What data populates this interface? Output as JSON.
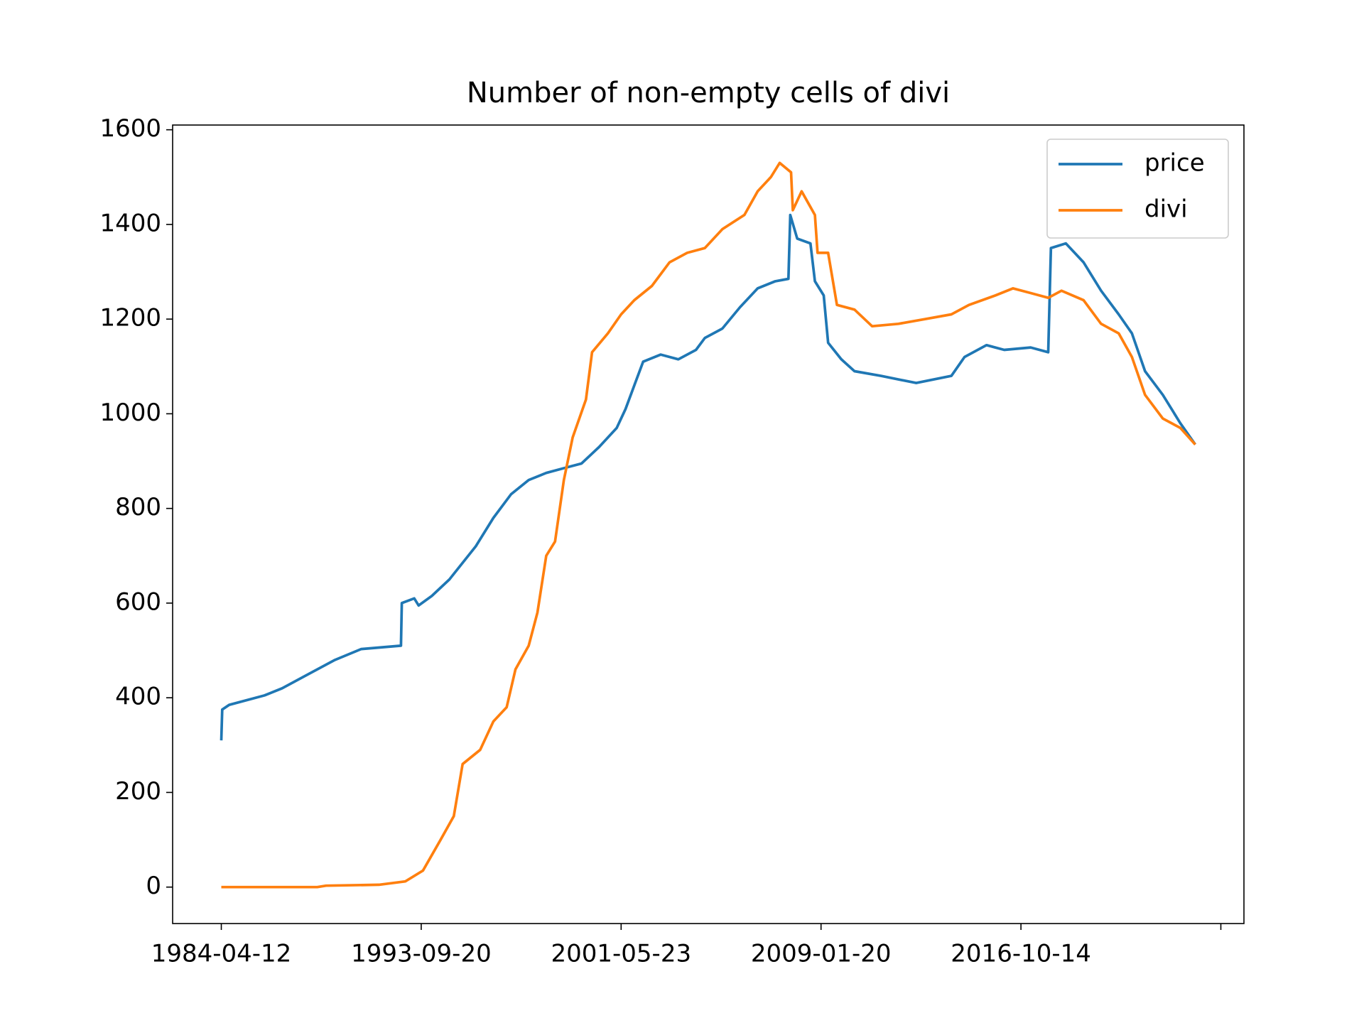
{
  "chart_data": {
    "type": "line",
    "title": "Number of non-empty cells of divi",
    "xlim": [
      -487,
      10231
    ],
    "ylim": [
      -77,
      1610
    ],
    "xticks": [
      {
        "value": 0,
        "label": "1984-04-12"
      },
      {
        "value": 2000,
        "label": "1993-09-20"
      },
      {
        "value": 4000,
        "label": "2001-05-23"
      },
      {
        "value": 6000,
        "label": "2009-01-20"
      },
      {
        "value": 8000,
        "label": "2016-10-14"
      },
      {
        "value": 10000,
        "label": null
      }
    ],
    "yticks": [
      0,
      200,
      400,
      600,
      800,
      1000,
      1200,
      1400,
      1600
    ],
    "legend": "upper right",
    "grid": false,
    "series": [
      {
        "name": "price",
        "color": "#1f77b4",
        "x": [
          0,
          9,
          79,
          432,
          608,
          872,
          1137,
          1401,
          1797,
          1806,
          1930,
          1974,
          2106,
          2282,
          2546,
          2722,
          2899,
          3075,
          3251,
          3427,
          3604,
          3780,
          3956,
          4044,
          4132,
          4220,
          4396,
          4573,
          4749,
          4837,
          5013,
          5189,
          5366,
          5542,
          5674,
          5692,
          5762,
          5894,
          5939,
          6027,
          6071,
          6203,
          6335,
          6599,
          6952,
          7304,
          7436,
          7656,
          7833,
          8097,
          8273,
          8300,
          8449,
          8626,
          8802,
          8978,
          9110,
          9242,
          9419,
          9595,
          9744
        ],
        "values": [
          310,
          375,
          385,
          405,
          420,
          450,
          480,
          503,
          510,
          600,
          610,
          595,
          615,
          650,
          720,
          780,
          830,
          860,
          875,
          885,
          895,
          930,
          970,
          1010,
          1060,
          1110,
          1125,
          1115,
          1135,
          1160,
          1180,
          1225,
          1265,
          1280,
          1285,
          1420,
          1370,
          1360,
          1280,
          1250,
          1150,
          1115,
          1090,
          1080,
          1065,
          1080,
          1120,
          1145,
          1135,
          1140,
          1130,
          1350,
          1360,
          1320,
          1260,
          1210,
          1170,
          1090,
          1040,
          980,
          935
        ]
      },
      {
        "name": "divi",
        "color": "#ff7f0e",
        "x": [
          0,
          432,
          960,
          1048,
          1577,
          1841,
          2018,
          2194,
          2326,
          2414,
          2590,
          2722,
          2855,
          2943,
          3075,
          3163,
          3251,
          3339,
          3427,
          3515,
          3648,
          3709,
          3868,
          4000,
          4132,
          4308,
          4485,
          4661,
          4837,
          5013,
          5233,
          5366,
          5498,
          5586,
          5700,
          5718,
          5806,
          5939,
          5965,
          6071,
          6159,
          6335,
          6511,
          6775,
          7040,
          7304,
          7480,
          7744,
          7921,
          8097,
          8273,
          8405,
          8626,
          8802,
          8978,
          9110,
          9242,
          9419,
          9595,
          9744
        ],
        "values": [
          0,
          0,
          0,
          3,
          5,
          12,
          35,
          100,
          150,
          260,
          290,
          350,
          380,
          460,
          510,
          580,
          700,
          730,
          860,
          950,
          1030,
          1130,
          1170,
          1210,
          1240,
          1270,
          1320,
          1340,
          1350,
          1390,
          1420,
          1470,
          1500,
          1530,
          1510,
          1430,
          1470,
          1420,
          1340,
          1340,
          1230,
          1220,
          1185,
          1190,
          1200,
          1210,
          1230,
          1250,
          1265,
          1255,
          1245,
          1260,
          1240,
          1190,
          1170,
          1120,
          1040,
          990,
          970,
          935
        ]
      }
    ]
  }
}
